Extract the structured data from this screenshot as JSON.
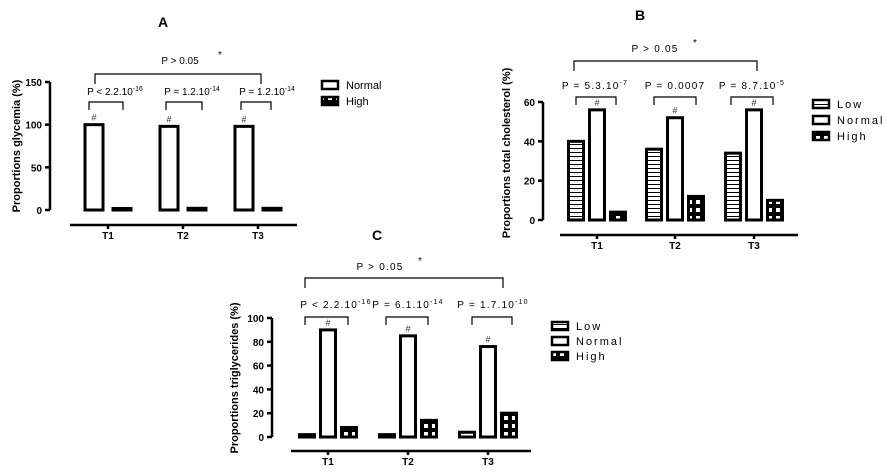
{
  "chart_data": [
    {
      "id": "A",
      "type": "bar",
      "title": "A",
      "xlabel": "",
      "ylabel": "Proportions glycemia (%)",
      "ylim": [
        0,
        150
      ],
      "yticks": [
        "0",
        "50",
        "100",
        "150"
      ],
      "categories": [
        "T1",
        "T2",
        "T3"
      ],
      "series": [
        {
          "name": "Normal",
          "pattern": "open",
          "values": [
            100,
            98,
            98
          ]
        },
        {
          "name": "High",
          "pattern": "checker",
          "values": [
            0,
            2,
            2
          ]
        }
      ],
      "legend": {
        "position": "right",
        "entries": [
          "Normal",
          "High"
        ]
      },
      "overall_test": {
        "label": "P > 0.05",
        "mark": "*"
      },
      "group_tests": [
        {
          "base": "P < 2.2.10",
          "exp": "-16",
          "mark": "#"
        },
        {
          "base": "P = 1.2.10",
          "exp": "-14",
          "mark": "#"
        },
        {
          "base": "P = 1.2.10",
          "exp": "-14",
          "mark": "#"
        }
      ]
    },
    {
      "id": "B",
      "type": "bar",
      "title": "B",
      "xlabel": "",
      "ylabel": "Proportions total cholesterol (%)",
      "ylim": [
        0,
        60
      ],
      "yticks": [
        "0",
        "20",
        "40",
        "60"
      ],
      "categories": [
        "T1",
        "T2",
        "T3"
      ],
      "series": [
        {
          "name": "Low",
          "pattern": "hstripe",
          "values": [
            40,
            36,
            34
          ]
        },
        {
          "name": "Normal",
          "pattern": "open",
          "values": [
            56,
            52,
            56
          ]
        },
        {
          "name": "High",
          "pattern": "checker",
          "values": [
            4,
            12,
            10
          ]
        }
      ],
      "legend": {
        "position": "right",
        "entries": [
          "Low",
          "Normal",
          "High"
        ]
      },
      "overall_test": {
        "label": "P > 0.05",
        "mark": "*"
      },
      "group_tests": [
        {
          "base": "P = 5.3.10",
          "exp": "-7",
          "mark": "#"
        },
        {
          "base": "P = 0.0007",
          "exp": "",
          "mark": "#"
        },
        {
          "base": "P = 8.7.10",
          "exp": "-5",
          "mark": "#"
        }
      ]
    },
    {
      "id": "C",
      "type": "bar",
      "title": "C",
      "xlabel": "",
      "ylabel": "Proportions triglycerides (%)",
      "ylim": [
        0,
        100
      ],
      "yticks": [
        "0",
        "20",
        "40",
        "60",
        "80",
        "100"
      ],
      "categories": [
        "T1",
        "T2",
        "T3"
      ],
      "series": [
        {
          "name": "Low",
          "pattern": "hstripe",
          "values": [
            2,
            2,
            4
          ]
        },
        {
          "name": "Normal",
          "pattern": "open",
          "values": [
            90,
            85,
            76
          ]
        },
        {
          "name": "High",
          "pattern": "checker",
          "values": [
            8,
            14,
            20
          ]
        }
      ],
      "legend": {
        "position": "right",
        "entries": [
          "Low",
          "Normal",
          "High"
        ]
      },
      "overall_test": {
        "label": "P > 0.05",
        "mark": "*"
      },
      "group_tests": [
        {
          "base": "P < 2.2.10",
          "exp": "-16",
          "mark": "#"
        },
        {
          "base": "P = 6.1.10",
          "exp": "-14",
          "mark": "#"
        },
        {
          "base": "P = 1.7.10",
          "exp": "-10",
          "mark": "#"
        }
      ]
    }
  ]
}
